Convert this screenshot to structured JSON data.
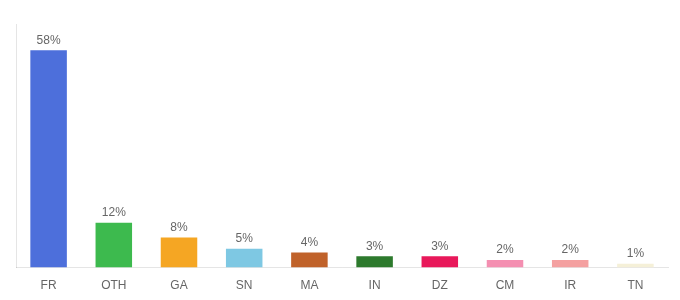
{
  "chart_data": {
    "type": "bar",
    "categories": [
      "FR",
      "OTH",
      "GA",
      "SN",
      "MA",
      "IN",
      "DZ",
      "CM",
      "IR",
      "TN"
    ],
    "values": [
      58,
      12,
      8,
      5,
      4,
      3,
      3,
      2,
      2,
      1
    ],
    "value_labels": [
      "58%",
      "12%",
      "8%",
      "5%",
      "4%",
      "3%",
      "3%",
      "2%",
      "2%",
      "1%"
    ],
    "colors": [
      "#4d6fdb",
      "#3dba4e",
      "#f5a623",
      "#7ec8e3",
      "#c0622a",
      "#2d7a2d",
      "#e8185a",
      "#f48fb1",
      "#f4a0a0",
      "#f5f0d8"
    ],
    "ylim": [
      0,
      65
    ],
    "grid": false,
    "data_labels": true,
    "tick_labels": "x"
  }
}
